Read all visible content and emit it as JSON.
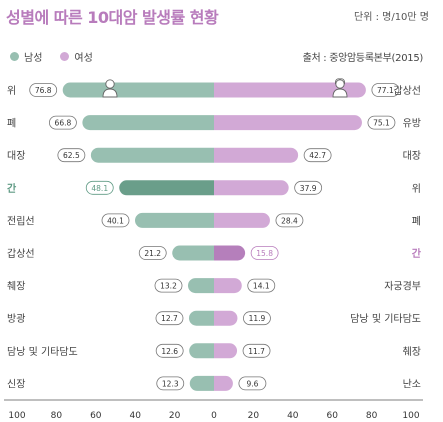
{
  "title": "성별에 따른 10대암 발생률 현황",
  "unit_text": "단위 : 명/10만 명",
  "source_text": "출처 : 중앙암등록본부(2015)",
  "legend": [
    {
      "name": "남성",
      "color": "#98bfb1"
    },
    {
      "name": "여성",
      "color": "#d2a9d6"
    }
  ],
  "chart_data": {
    "type": "bar",
    "orientation": "horizontal-diverging",
    "x_ticks": [
      "100",
      "80",
      "60",
      "40",
      "20",
      "0",
      "20",
      "40",
      "60",
      "80",
      "100"
    ],
    "xlim": [
      -100,
      100
    ],
    "rows": [
      {
        "male_label": "위",
        "male_value": 76.8,
        "female_label": "갑상선",
        "female_value": 77.1
      },
      {
        "male_label": "폐",
        "male_value": 66.8,
        "female_label": "유방",
        "female_value": 75.1
      },
      {
        "male_label": "대장",
        "male_value": 62.5,
        "female_label": "대장",
        "female_value": 42.7
      },
      {
        "male_label": "간",
        "male_value": 48.1,
        "female_label": "위",
        "female_value": 37.9
      },
      {
        "male_label": "전립선",
        "male_value": 40.1,
        "female_label": "폐",
        "female_value": 28.4
      },
      {
        "male_label": "갑상선",
        "male_value": 21.2,
        "female_label": "간",
        "female_value": 15.8
      },
      {
        "male_label": "췌장",
        "male_value": 13.2,
        "female_label": "자궁경부",
        "female_value": 14.1
      },
      {
        "male_label": "방광",
        "male_value": 12.7,
        "female_label": "담낭 및 기타담도",
        "female_value": 11.9
      },
      {
        "male_label": "담낭 및 기타담도",
        "male_value": 12.6,
        "female_label": "췌장",
        "female_value": 11.7
      },
      {
        "male_label": "신장",
        "male_value": 12.3,
        "female_label": "난소",
        "female_value": 9.6
      }
    ],
    "colors": {
      "male": "#98bfb1",
      "male_emphasis": "#6a9e8a",
      "female": "#d2a9d6",
      "female_emphasis": "#b57fbb",
      "text_emphasis_male": "#5f9a84",
      "text_emphasis_female": "#b87cbc"
    },
    "highlight": {
      "male_row": 3,
      "female_row": 5
    },
    "icons": [
      "male-figure-icon",
      "female-figure-icon"
    ]
  }
}
